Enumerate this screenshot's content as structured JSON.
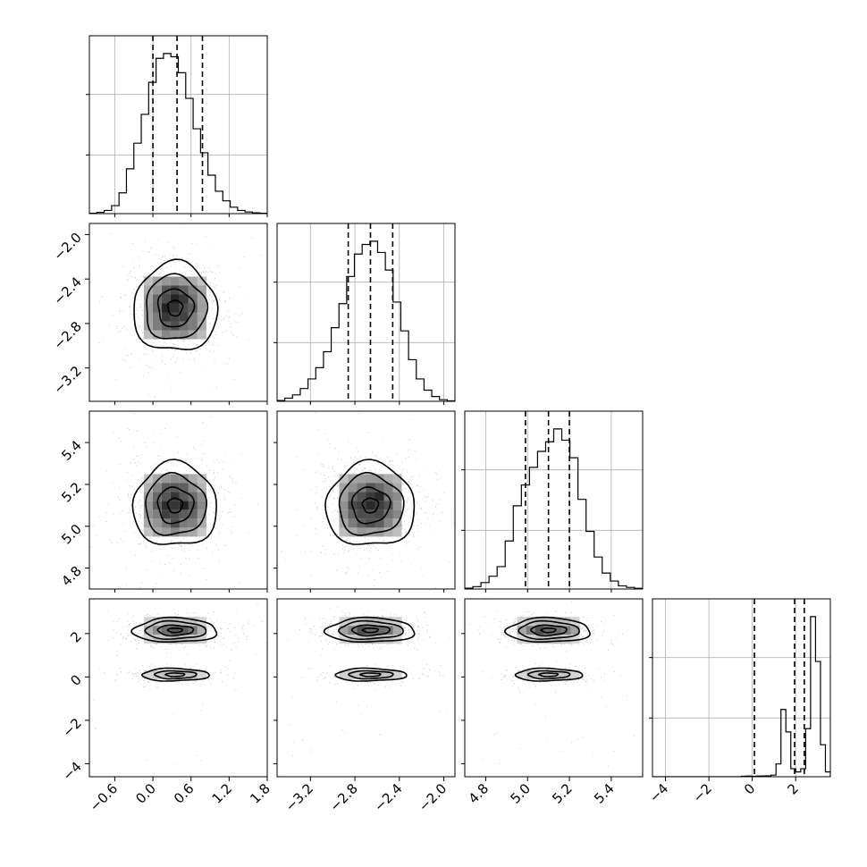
{
  "chart_data": {
    "type": "corner",
    "parameters": [
      {
        "index": 0,
        "range": [
          -1.0,
          1.8
        ],
        "ticks": [
          "-0.6",
          "0.0",
          "0.6",
          "1.2",
          "1.8"
        ],
        "tick_values": [
          -0.6,
          0.0,
          0.6,
          1.2,
          1.8
        ],
        "quantiles": [
          0.0,
          0.38,
          0.78
        ],
        "hist_bins": [
          0.002,
          0.008,
          0.02,
          0.05,
          0.13,
          0.28,
          0.44,
          0.62,
          0.82,
          0.97,
          1.0,
          0.98,
          0.88,
          0.72,
          0.53,
          0.38,
          0.24,
          0.14,
          0.08,
          0.04,
          0.02,
          0.01,
          0.005,
          0.002
        ]
      },
      {
        "index": 1,
        "range": [
          -3.5,
          -1.9
        ],
        "ticks": [
          "-3.2",
          "-2.8",
          "-2.4",
          "-2.0"
        ],
        "tick_values": [
          -3.2,
          -2.8,
          -2.4,
          -2.0
        ],
        "quantiles": [
          -2.86,
          -2.66,
          -2.46
        ],
        "hist_bins": [
          0.005,
          0.02,
          0.04,
          0.08,
          0.14,
          0.21,
          0.31,
          0.46,
          0.61,
          0.78,
          0.92,
          0.98,
          1.0,
          0.93,
          0.82,
          0.62,
          0.44,
          0.26,
          0.14,
          0.07,
          0.03,
          0.01,
          0.003
        ]
      },
      {
        "index": 2,
        "range": [
          4.7,
          5.55
        ],
        "ticks": [
          "4.8",
          "5.0",
          "5.2",
          "5.4"
        ],
        "tick_values": [
          4.8,
          5.0,
          5.2,
          5.4
        ],
        "quantiles": [
          4.99,
          5.1,
          5.2
        ],
        "hist_bins": [
          0.005,
          0.015,
          0.04,
          0.08,
          0.14,
          0.3,
          0.52,
          0.65,
          0.76,
          0.86,
          0.92,
          1.0,
          0.93,
          0.82,
          0.56,
          0.36,
          0.2,
          0.1,
          0.05,
          0.02,
          0.01,
          0.004
        ]
      },
      {
        "index": 3,
        "range": [
          -4.6,
          3.6
        ],
        "ticks": [
          "-4",
          "-2",
          "0",
          "2"
        ],
        "tick_values": [
          -4,
          -2,
          0,
          2
        ],
        "quantiles": [
          0.1,
          1.95,
          2.4
        ],
        "hist_bins": [
          0,
          0,
          0,
          0,
          0,
          0,
          0,
          0,
          0,
          0,
          0,
          0,
          0,
          0,
          0,
          0,
          0,
          0,
          0.003,
          0.004,
          0.003,
          0.004,
          0.005,
          0.006,
          0.01,
          0.08,
          0.42,
          0.28,
          0.05,
          0.03,
          0.05,
          0.3,
          1.0,
          0.72,
          0.2,
          0.03
        ]
      }
    ],
    "pairs": [
      {
        "row": 1,
        "col": 0,
        "clusters": [
          {
            "cx": 0.35,
            "cy": -2.66,
            "sx": 0.33,
            "sy": 0.2
          }
        ]
      },
      {
        "row": 2,
        "col": 0,
        "clusters": [
          {
            "cx": 0.35,
            "cy": 5.1,
            "sx": 0.33,
            "sy": 0.1
          }
        ]
      },
      {
        "row": 2,
        "col": 1,
        "clusters": [
          {
            "cx": -2.66,
            "cy": 5.1,
            "sx": 0.2,
            "sy": 0.1
          }
        ]
      },
      {
        "row": 3,
        "col": 0,
        "clusters": [
          {
            "cx": 0.35,
            "cy": 2.15,
            "sx": 0.33,
            "sy": 0.28,
            "w": 0.75
          },
          {
            "cx": 0.35,
            "cy": 0.1,
            "sx": 0.33,
            "sy": 0.18,
            "w": 0.25
          }
        ]
      },
      {
        "row": 3,
        "col": 1,
        "clusters": [
          {
            "cx": -2.66,
            "cy": 2.15,
            "sx": 0.2,
            "sy": 0.28,
            "w": 0.75
          },
          {
            "cx": -2.66,
            "cy": 0.1,
            "sx": 0.2,
            "sy": 0.18,
            "w": 0.25
          }
        ]
      },
      {
        "row": 3,
        "col": 2,
        "clusters": [
          {
            "cx": 5.1,
            "cy": 2.15,
            "sx": 0.1,
            "sy": 0.28,
            "w": 0.75
          },
          {
            "cx": 5.1,
            "cy": 0.1,
            "sx": 0.1,
            "sy": 0.18,
            "w": 0.25
          }
        ]
      }
    ],
    "grid": true,
    "axis_labels": [
      "",
      "",
      "",
      ""
    ],
    "title": ""
  }
}
